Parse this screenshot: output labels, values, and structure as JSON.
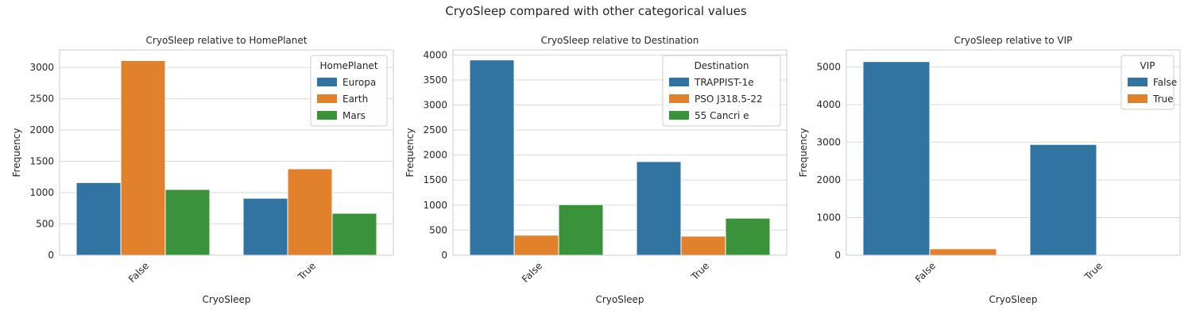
{
  "suptitle": "CryoSleep compared with other categorical values",
  "colors": {
    "blue": "#3274a1",
    "orange": "#e1812c",
    "green": "#3a923a"
  },
  "chart_data": [
    {
      "type": "bar",
      "title": "CryoSleep relative to HomePlanet",
      "xlabel": "CryoSleep",
      "ylabel": "Frequency",
      "categories": [
        "False",
        "True"
      ],
      "ylim": [
        0,
        3280
      ],
      "yticks": [
        0,
        500,
        1000,
        1500,
        2000,
        2500,
        3000
      ],
      "legend_title": "HomePlanet",
      "legend_position": "top-right",
      "grid": "horizontal",
      "series": [
        {
          "name": "Europa",
          "values": [
            1160,
            910
          ]
        },
        {
          "name": "Earth",
          "values": [
            3110,
            1380
          ]
        },
        {
          "name": "Mars",
          "values": [
            1050,
            670
          ]
        }
      ]
    },
    {
      "type": "bar",
      "title": "CryoSleep relative to Destination",
      "xlabel": "CryoSleep",
      "ylabel": "Frequency",
      "categories": [
        "False",
        "True"
      ],
      "ylim": [
        0,
        4100
      ],
      "yticks": [
        0,
        500,
        1000,
        1500,
        2000,
        2500,
        3000,
        3500,
        4000
      ],
      "legend_title": "Destination",
      "legend_position": "top-right",
      "grid": "horizontal",
      "series": [
        {
          "name": "TRAPPIST-1e",
          "values": [
            3900,
            1870
          ]
        },
        {
          "name": "PSO J318.5-22",
          "values": [
            400,
            380
          ]
        },
        {
          "name": "55 Cancri e",
          "values": [
            1010,
            740
          ]
        }
      ]
    },
    {
      "type": "bar",
      "title": "CryoSleep relative to VIP",
      "xlabel": "CryoSleep",
      "ylabel": "Frequency",
      "categories": [
        "False",
        "True"
      ],
      "ylim": [
        0,
        5450
      ],
      "yticks": [
        0,
        1000,
        2000,
        3000,
        4000,
        5000
      ],
      "legend_title": "VIP",
      "legend_position": "top-right",
      "grid": "horizontal",
      "series": [
        {
          "name": "False",
          "values": [
            5140,
            2940
          ]
        },
        {
          "name": "True",
          "values": [
            170,
            5
          ]
        }
      ]
    }
  ]
}
